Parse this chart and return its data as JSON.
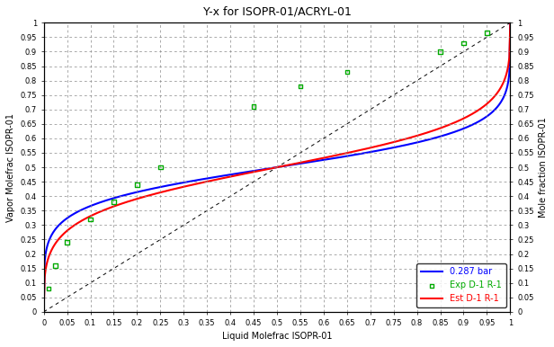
{
  "title": "Y-x for ISOPR-01/ACRYL-01",
  "xlabel": "Liquid Molefrac ISOPR-01",
  "ylabel": "Vapor Molefrac ISOPR-01",
  "ylabel2": "Mole fraction ISOPR-01",
  "xlim": [
    0,
    1.0
  ],
  "ylim": [
    0,
    1.0
  ],
  "xticks": [
    0,
    0.05,
    0.1,
    0.15,
    0.2,
    0.25,
    0.3,
    0.35,
    0.4,
    0.45,
    0.5,
    0.55,
    0.6,
    0.65,
    0.7,
    0.75,
    0.8,
    0.85,
    0.9,
    0.95,
    1.0
  ],
  "yticks": [
    0,
    0.05,
    0.1,
    0.15,
    0.2,
    0.25,
    0.3,
    0.35,
    0.4,
    0.45,
    0.5,
    0.55,
    0.6,
    0.65,
    0.7,
    0.75,
    0.8,
    0.85,
    0.9,
    0.95,
    1.0
  ],
  "blue_line_label": "0.287 bar",
  "green_marker_label": "Exp D-1 R-1",
  "red_line_label": "Est D-1 R-1",
  "blue_color": "#0000FF",
  "red_color": "#FF0000",
  "green_color": "#00AA00",
  "background_color": "#FFFFFF",
  "exp_x": [
    0.01,
    0.025,
    0.05,
    0.1,
    0.15,
    0.2,
    0.25,
    0.45,
    0.55,
    0.65,
    0.85,
    0.9,
    0.95
  ],
  "exp_y": [
    0.08,
    0.16,
    0.24,
    0.32,
    0.38,
    0.44,
    0.5,
    0.71,
    0.78,
    0.83,
    0.9,
    0.93,
    0.965
  ],
  "title_fontsize": 9,
  "axis_fontsize": 7,
  "tick_fontsize": 6,
  "legend_fontsize": 7,
  "blue_alpha": 0.25,
  "red_alpha": 0.32
}
